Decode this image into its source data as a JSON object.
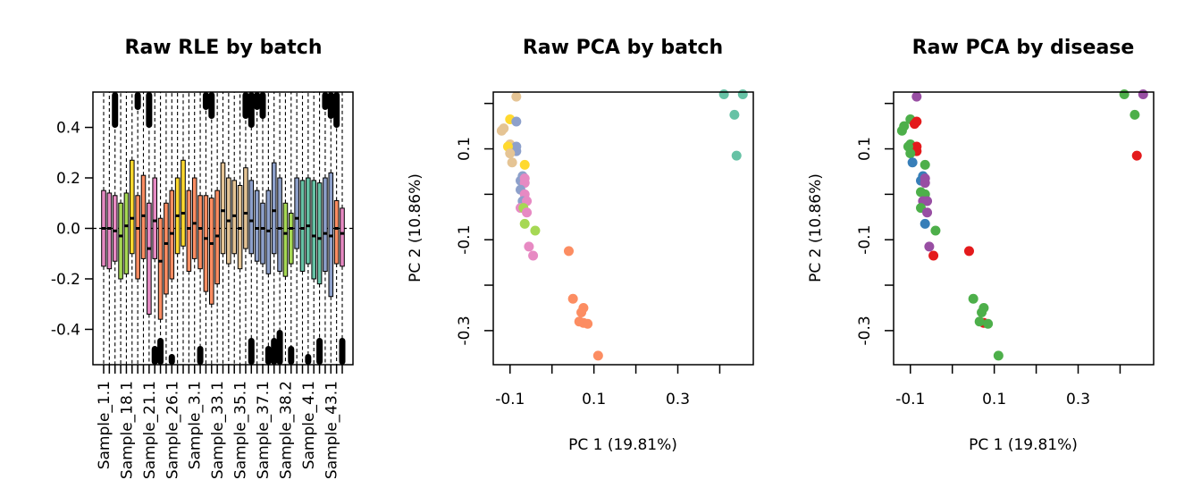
{
  "chart_data": [
    {
      "type": "box",
      "title": "Raw RLE by batch",
      "xlabel": "",
      "ylabel": "",
      "ylim": [
        -0.54,
        0.54
      ],
      "yticks": [
        -0.4,
        -0.2,
        0.0,
        0.2,
        0.4
      ],
      "ytick_labels": [
        "-0.4",
        "-0.2",
        "0.0",
        "0.2",
        "0.4"
      ],
      "xtick_labels": [
        "Sample_1.1",
        "Sample_18.1",
        "Sample_21.1",
        "Sample_26.1",
        "Sample_3.1",
        "Sample_33.1",
        "Sample_35.1",
        "Sample_37.1",
        "Sample_38.2",
        "Sample_4.1",
        "Sample_43.1"
      ],
      "zero_line": true,
      "batch_colors": [
        "#E78AC3",
        "#A6D854",
        "#FFD92F",
        "#FC8D62",
        "#E5C494",
        "#8DA0CB",
        "#66C2A5"
      ],
      "boxes": [
        {
          "color": "#E78AC3",
          "q1": -0.15,
          "median": 0.0,
          "q3": 0.15,
          "wlo": -0.54,
          "whi": 0.54
        },
        {
          "color": "#E78AC3",
          "q1": -0.16,
          "median": 0.0,
          "q3": 0.14,
          "wlo": -0.54,
          "whi": 0.54
        },
        {
          "color": "#E78AC3",
          "q1": -0.13,
          "median": -0.01,
          "q3": 0.13,
          "wlo": -0.54,
          "whi": 0.54
        },
        {
          "color": "#A6D854",
          "q1": -0.2,
          "median": -0.03,
          "q3": 0.1,
          "wlo": -0.54,
          "whi": 0.54
        },
        {
          "color": "#A6D854",
          "q1": -0.18,
          "median": 0.01,
          "q3": 0.14,
          "wlo": -0.54,
          "whi": 0.54
        },
        {
          "color": "#FFD92F",
          "q1": -0.1,
          "median": 0.04,
          "q3": 0.27,
          "wlo": -0.54,
          "whi": 0.54
        },
        {
          "color": "#FC8D62",
          "q1": -0.2,
          "median": 0.0,
          "q3": 0.13,
          "wlo": -0.54,
          "whi": 0.54
        },
        {
          "color": "#FC8D62",
          "q1": -0.12,
          "median": 0.05,
          "q3": 0.21,
          "wlo": -0.54,
          "whi": 0.54
        },
        {
          "color": "#E78AC3",
          "q1": -0.34,
          "median": -0.08,
          "q3": 0.1,
          "wlo": -0.54,
          "whi": 0.54
        },
        {
          "color": "#E78AC3",
          "q1": -0.12,
          "median": 0.03,
          "q3": 0.2,
          "wlo": -0.54,
          "whi": 0.54
        },
        {
          "color": "#FC8D62",
          "q1": -0.36,
          "median": -0.13,
          "q3": 0.04,
          "wlo": -0.54,
          "whi": 0.54
        },
        {
          "color": "#FC8D62",
          "q1": -0.26,
          "median": -0.06,
          "q3": 0.1,
          "wlo": -0.54,
          "whi": 0.54
        },
        {
          "color": "#FC8D62",
          "q1": -0.2,
          "median": -0.02,
          "q3": 0.15,
          "wlo": -0.54,
          "whi": 0.54
        },
        {
          "color": "#FFD92F",
          "q1": -0.1,
          "median": 0.05,
          "q3": 0.2,
          "wlo": -0.54,
          "whi": 0.54
        },
        {
          "color": "#FFD92F",
          "q1": -0.07,
          "median": 0.06,
          "q3": 0.27,
          "wlo": -0.54,
          "whi": 0.54
        },
        {
          "color": "#FC8D62",
          "q1": -0.17,
          "median": 0.0,
          "q3": 0.15,
          "wlo": -0.54,
          "whi": 0.54
        },
        {
          "color": "#FC8D62",
          "q1": -0.12,
          "median": 0.02,
          "q3": 0.2,
          "wlo": -0.54,
          "whi": 0.54
        },
        {
          "color": "#FC8D62",
          "q1": -0.16,
          "median": 0.0,
          "q3": 0.13,
          "wlo": -0.54,
          "whi": 0.54
        },
        {
          "color": "#FC8D62",
          "q1": -0.25,
          "median": -0.04,
          "q3": 0.13,
          "wlo": -0.54,
          "whi": 0.54
        },
        {
          "color": "#FC8D62",
          "q1": -0.3,
          "median": -0.06,
          "q3": 0.12,
          "wlo": -0.54,
          "whi": 0.54
        },
        {
          "color": "#FC8D62",
          "q1": -0.22,
          "median": -0.03,
          "q3": 0.15,
          "wlo": -0.54,
          "whi": 0.54
        },
        {
          "color": "#E5C494",
          "q1": -0.1,
          "median": 0.07,
          "q3": 0.26,
          "wlo": -0.54,
          "whi": 0.54
        },
        {
          "color": "#E5C494",
          "q1": -0.14,
          "median": 0.03,
          "q3": 0.2,
          "wlo": -0.54,
          "whi": 0.54
        },
        {
          "color": "#E5C494",
          "q1": -0.1,
          "median": 0.05,
          "q3": 0.19,
          "wlo": -0.54,
          "whi": 0.54
        },
        {
          "color": "#E5C494",
          "q1": -0.16,
          "median": 0.0,
          "q3": 0.17,
          "wlo": -0.54,
          "whi": 0.54
        },
        {
          "color": "#E5C494",
          "q1": -0.08,
          "median": 0.06,
          "q3": 0.24,
          "wlo": -0.54,
          "whi": 0.54
        },
        {
          "color": "#8DA0CB",
          "q1": -0.1,
          "median": 0.03,
          "q3": 0.19,
          "wlo": -0.54,
          "whi": 0.54
        },
        {
          "color": "#8DA0CB",
          "q1": -0.13,
          "median": 0.0,
          "q3": 0.15,
          "wlo": -0.54,
          "whi": 0.54
        },
        {
          "color": "#8DA0CB",
          "q1": -0.14,
          "median": 0.0,
          "q3": 0.1,
          "wlo": -0.54,
          "whi": 0.54
        },
        {
          "color": "#8DA0CB",
          "q1": -0.18,
          "median": -0.01,
          "q3": 0.15,
          "wlo": -0.54,
          "whi": 0.54
        },
        {
          "color": "#8DA0CB",
          "q1": -0.1,
          "median": 0.07,
          "q3": 0.26,
          "wlo": -0.54,
          "whi": 0.54
        },
        {
          "color": "#8DA0CB",
          "q1": -0.17,
          "median": 0.0,
          "q3": 0.2,
          "wlo": -0.54,
          "whi": 0.54
        },
        {
          "color": "#A6D854",
          "q1": -0.19,
          "median": -0.02,
          "q3": 0.1,
          "wlo": -0.54,
          "whi": 0.54
        },
        {
          "color": "#A6D854",
          "q1": -0.14,
          "median": 0.0,
          "q3": 0.06,
          "wlo": -0.54,
          "whi": 0.54
        },
        {
          "color": "#8DA0CB",
          "q1": -0.08,
          "median": 0.04,
          "q3": 0.2,
          "wlo": -0.54,
          "whi": 0.54
        },
        {
          "color": "#66C2A5",
          "q1": -0.17,
          "median": 0.0,
          "q3": 0.19,
          "wlo": -0.54,
          "whi": 0.54
        },
        {
          "color": "#66C2A5",
          "q1": -0.14,
          "median": 0.01,
          "q3": 0.2,
          "wlo": -0.54,
          "whi": 0.54
        },
        {
          "color": "#66C2A5",
          "q1": -0.2,
          "median": -0.03,
          "q3": 0.19,
          "wlo": -0.54,
          "whi": 0.54
        },
        {
          "color": "#66C2A5",
          "q1": -0.22,
          "median": -0.04,
          "q3": 0.18,
          "wlo": -0.54,
          "whi": 0.54
        },
        {
          "color": "#8DA0CB",
          "q1": -0.17,
          "median": -0.02,
          "q3": 0.2,
          "wlo": -0.54,
          "whi": 0.54
        },
        {
          "color": "#8DA0CB",
          "q1": -0.27,
          "median": -0.03,
          "q3": 0.22,
          "wlo": -0.54,
          "whi": 0.54
        },
        {
          "color": "#FC8D62",
          "q1": -0.14,
          "median": 0.0,
          "q3": 0.11,
          "wlo": -0.54,
          "whi": 0.54
        },
        {
          "color": "#E78AC3",
          "q1": -0.15,
          "median": -0.02,
          "q3": 0.08,
          "wlo": -0.54,
          "whi": 0.54
        }
      ]
    },
    {
      "type": "scatter",
      "title": "Raw PCA by batch",
      "xlabel": "PC 1 (19.81%)",
      "ylabel": "PC 2 (10.86%)",
      "xlim": [
        -0.14,
        0.48
      ],
      "ylim": [
        -0.375,
        0.225
      ],
      "xticks": [
        -0.1,
        0.0,
        0.1,
        0.2,
        0.3,
        0.4
      ],
      "xtick_labels": [
        "-0.1",
        "",
        "0.1",
        "",
        "0.3",
        ""
      ],
      "yticks": [
        -0.3,
        -0.2,
        -0.1,
        0.0,
        0.1,
        0.2
      ],
      "ytick_labels": [
        "-0.3",
        "",
        "-0.1",
        "",
        "0.1",
        ""
      ],
      "points": [
        {
          "x": -0.12,
          "y": 0.14,
          "color": "#E5C494"
        },
        {
          "x": -0.115,
          "y": 0.145,
          "color": "#E5C494"
        },
        {
          "x": -0.1,
          "y": 0.165,
          "color": "#FFD92F"
        },
        {
          "x": -0.085,
          "y": 0.215,
          "color": "#E5C494"
        },
        {
          "x": -0.085,
          "y": 0.16,
          "color": "#8DA0CB"
        },
        {
          "x": -0.1,
          "y": 0.11,
          "color": "#E5C494"
        },
        {
          "x": -0.085,
          "y": 0.105,
          "color": "#8DA0CB"
        },
        {
          "x": -0.085,
          "y": 0.095,
          "color": "#8DA0CB"
        },
        {
          "x": -0.105,
          "y": 0.105,
          "color": "#FFD92F"
        },
        {
          "x": -0.1,
          "y": 0.09,
          "color": "#E5C494"
        },
        {
          "x": -0.095,
          "y": 0.07,
          "color": "#E5C494"
        },
        {
          "x": -0.065,
          "y": 0.065,
          "color": "#FFD92F"
        },
        {
          "x": -0.07,
          "y": 0.04,
          "color": "#8DA0CB"
        },
        {
          "x": -0.075,
          "y": 0.03,
          "color": "#8DA0CB"
        },
        {
          "x": -0.065,
          "y": 0.035,
          "color": "#E78AC3"
        },
        {
          "x": -0.065,
          "y": 0.025,
          "color": "#E78AC3"
        },
        {
          "x": -0.075,
          "y": 0.01,
          "color": "#8DA0CB"
        },
        {
          "x": -0.065,
          "y": 0.0,
          "color": "#E78AC3"
        },
        {
          "x": -0.07,
          "y": -0.015,
          "color": "#8DA0CB"
        },
        {
          "x": -0.06,
          "y": -0.015,
          "color": "#E78AC3"
        },
        {
          "x": -0.075,
          "y": -0.03,
          "color": "#E78AC3"
        },
        {
          "x": -0.068,
          "y": -0.03,
          "color": "#A6D854"
        },
        {
          "x": -0.06,
          "y": -0.04,
          "color": "#E78AC3"
        },
        {
          "x": -0.065,
          "y": -0.065,
          "color": "#A6D854"
        },
        {
          "x": -0.04,
          "y": -0.08,
          "color": "#A6D854"
        },
        {
          "x": -0.055,
          "y": -0.115,
          "color": "#E78AC3"
        },
        {
          "x": -0.045,
          "y": -0.135,
          "color": "#E78AC3"
        },
        {
          "x": 0.04,
          "y": -0.125,
          "color": "#FC8D62"
        },
        {
          "x": 0.05,
          "y": -0.23,
          "color": "#FC8D62"
        },
        {
          "x": 0.075,
          "y": -0.25,
          "color": "#FC8D62"
        },
        {
          "x": 0.07,
          "y": -0.26,
          "color": "#FC8D62"
        },
        {
          "x": 0.065,
          "y": -0.28,
          "color": "#FC8D62"
        },
        {
          "x": 0.075,
          "y": -0.283,
          "color": "#FC8D62"
        },
        {
          "x": 0.085,
          "y": -0.285,
          "color": "#FC8D62"
        },
        {
          "x": 0.11,
          "y": -0.355,
          "color": "#FC8D62"
        },
        {
          "x": 0.41,
          "y": 0.22,
          "color": "#66C2A5"
        },
        {
          "x": 0.455,
          "y": 0.22,
          "color": "#66C2A5"
        },
        {
          "x": 0.435,
          "y": 0.175,
          "color": "#66C2A5"
        },
        {
          "x": 0.44,
          "y": 0.085,
          "color": "#66C2A5"
        }
      ]
    },
    {
      "type": "scatter",
      "title": "Raw PCA by disease",
      "xlabel": "PC 1 (19.81%)",
      "ylabel": "PC 2 (10.86%)",
      "xlim": [
        -0.14,
        0.48
      ],
      "ylim": [
        -0.375,
        0.225
      ],
      "xticks": [
        -0.1,
        0.0,
        0.1,
        0.2,
        0.3,
        0.4
      ],
      "xtick_labels": [
        "-0.1",
        "",
        "0.1",
        "",
        "0.3",
        ""
      ],
      "yticks": [
        -0.3,
        -0.2,
        -0.1,
        0.0,
        0.1,
        0.2
      ],
      "ytick_labels": [
        "-0.3",
        "",
        "-0.1",
        "",
        "0.1",
        ""
      ],
      "points": [
        {
          "x": -0.12,
          "y": 0.14,
          "color": "#4DAF4A"
        },
        {
          "x": -0.115,
          "y": 0.15,
          "color": "#4DAF4A"
        },
        {
          "x": -0.1,
          "y": 0.165,
          "color": "#4DAF4A"
        },
        {
          "x": -0.085,
          "y": 0.215,
          "color": "#984EA3"
        },
        {
          "x": -0.085,
          "y": 0.16,
          "color": "#E41A1C"
        },
        {
          "x": -0.09,
          "y": 0.155,
          "color": "#E41A1C"
        },
        {
          "x": -0.1,
          "y": 0.11,
          "color": "#4DAF4A"
        },
        {
          "x": -0.085,
          "y": 0.105,
          "color": "#E41A1C"
        },
        {
          "x": -0.085,
          "y": 0.095,
          "color": "#E41A1C"
        },
        {
          "x": -0.105,
          "y": 0.105,
          "color": "#4DAF4A"
        },
        {
          "x": -0.1,
          "y": 0.09,
          "color": "#4DAF4A"
        },
        {
          "x": -0.095,
          "y": 0.07,
          "color": "#377EB8"
        },
        {
          "x": -0.065,
          "y": 0.065,
          "color": "#4DAF4A"
        },
        {
          "x": -0.07,
          "y": 0.04,
          "color": "#377EB8"
        },
        {
          "x": -0.075,
          "y": 0.03,
          "color": "#377EB8"
        },
        {
          "x": -0.065,
          "y": 0.035,
          "color": "#984EA3"
        },
        {
          "x": -0.065,
          "y": 0.025,
          "color": "#984EA3"
        },
        {
          "x": -0.075,
          "y": 0.005,
          "color": "#4DAF4A"
        },
        {
          "x": -0.065,
          "y": 0.0,
          "color": "#4DAF4A"
        },
        {
          "x": -0.07,
          "y": -0.015,
          "color": "#984EA3"
        },
        {
          "x": -0.06,
          "y": -0.015,
          "color": "#984EA3"
        },
        {
          "x": -0.075,
          "y": -0.03,
          "color": "#4DAF4A"
        },
        {
          "x": -0.06,
          "y": -0.04,
          "color": "#984EA3"
        },
        {
          "x": -0.065,
          "y": -0.065,
          "color": "#377EB8"
        },
        {
          "x": -0.04,
          "y": -0.08,
          "color": "#4DAF4A"
        },
        {
          "x": -0.055,
          "y": -0.115,
          "color": "#984EA3"
        },
        {
          "x": -0.045,
          "y": -0.135,
          "color": "#E41A1C"
        },
        {
          "x": 0.04,
          "y": -0.125,
          "color": "#E41A1C"
        },
        {
          "x": 0.05,
          "y": -0.23,
          "color": "#4DAF4A"
        },
        {
          "x": 0.075,
          "y": -0.25,
          "color": "#4DAF4A"
        },
        {
          "x": 0.07,
          "y": -0.26,
          "color": "#4DAF4A"
        },
        {
          "x": 0.075,
          "y": -0.283,
          "color": "#E41A1C"
        },
        {
          "x": 0.065,
          "y": -0.28,
          "color": "#4DAF4A"
        },
        {
          "x": 0.085,
          "y": -0.285,
          "color": "#4DAF4A"
        },
        {
          "x": 0.11,
          "y": -0.355,
          "color": "#4DAF4A"
        },
        {
          "x": 0.41,
          "y": 0.22,
          "color": "#4DAF4A"
        },
        {
          "x": 0.455,
          "y": 0.22,
          "color": "#984EA3"
        },
        {
          "x": 0.435,
          "y": 0.175,
          "color": "#4DAF4A"
        },
        {
          "x": 0.44,
          "y": 0.085,
          "color": "#E41A1C"
        }
      ]
    }
  ]
}
